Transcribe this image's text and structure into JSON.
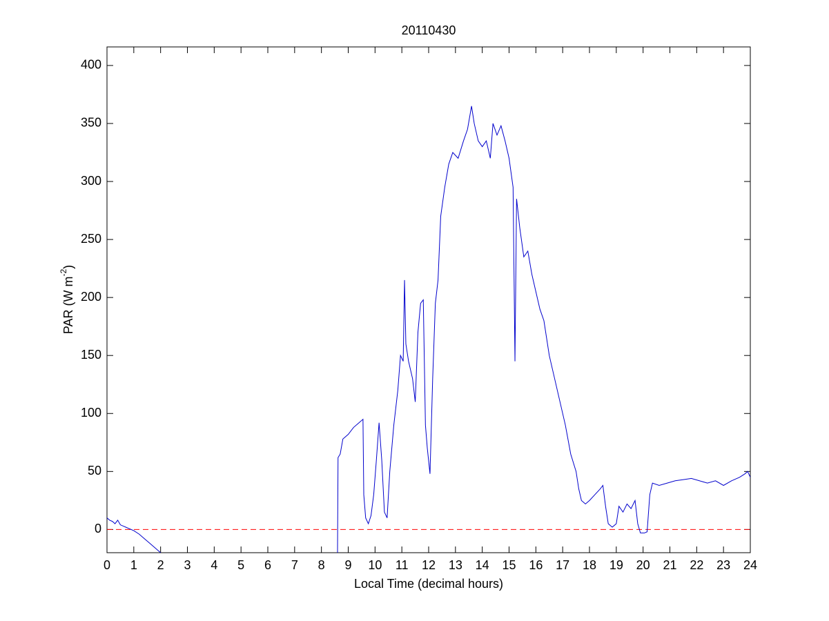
{
  "chart_data": {
    "type": "line",
    "title": "20110430",
    "xlabel": "Local Time (decimal hours)",
    "ylabel": {
      "text": "PAR (W m",
      "sup": "-2",
      "tail": ")"
    },
    "xlim": [
      0,
      24
    ],
    "xticks": [
      0,
      1,
      2,
      3,
      4,
      5,
      6,
      7,
      8,
      9,
      10,
      11,
      12,
      13,
      14,
      15,
      16,
      17,
      18,
      19,
      20,
      21,
      22,
      23,
      24
    ],
    "ylim": [
      -20,
      416
    ],
    "yticks": [
      0,
      50,
      100,
      150,
      200,
      250,
      300,
      350,
      400
    ],
    "reference_line": {
      "value": 0,
      "color": "#ff0000",
      "style": "dashed"
    },
    "series": [
      {
        "color": "#0000cc",
        "x": [
          0,
          0.1,
          0.2,
          0.3,
          0.4,
          0.5,
          0.6,
          0.7,
          0.8,
          0.9,
          1.0,
          1.2,
          1.4,
          1.6,
          1.8,
          2.0,
          5,
          8.6,
          8.62,
          8.7,
          8.8,
          9.0,
          9.2,
          9.4,
          9.55,
          9.58,
          9.65,
          9.75,
          9.85,
          9.95,
          10.05,
          10.15,
          10.25,
          10.35,
          10.45,
          10.55,
          10.7,
          10.85,
          10.95,
          11.05,
          11.1,
          11.15,
          11.25,
          11.4,
          11.5,
          11.6,
          11.7,
          11.8,
          11.88,
          11.95,
          12.05,
          12.15,
          12.25,
          12.35,
          12.45,
          12.6,
          12.75,
          12.9,
          13.1,
          13.3,
          13.45,
          13.6,
          13.7,
          13.85,
          14.0,
          14.15,
          14.3,
          14.4,
          14.55,
          14.7,
          14.85,
          15.0,
          15.15,
          15.22,
          15.28,
          15.4,
          15.55,
          15.7,
          15.85,
          16.0,
          16.15,
          16.3,
          16.5,
          16.7,
          16.9,
          17.1,
          17.3,
          17.5,
          17.6,
          17.7,
          17.85,
          18.0,
          18.2,
          18.4,
          18.5,
          18.6,
          18.7,
          18.85,
          19.0,
          19.1,
          19.25,
          19.4,
          19.55,
          19.7,
          19.8,
          19.9,
          20.05,
          20.15,
          20.25,
          20.35,
          20.6,
          20.9,
          21.2,
          21.5,
          21.8,
          22.1,
          22.4,
          22.7,
          23.0,
          23.3,
          23.6,
          23.8,
          23.9,
          24.0
        ],
        "values": [
          10,
          8,
          7,
          5,
          8,
          4,
          3,
          2,
          1,
          0,
          -1,
          -4,
          -8,
          -12,
          -16,
          -20,
          null,
          -20,
          62,
          65,
          78,
          82,
          88,
          92,
          95,
          30,
          10,
          5,
          12,
          30,
          60,
          92,
          60,
          15,
          10,
          50,
          90,
          120,
          150,
          145,
          215,
          160,
          145,
          130,
          110,
          170,
          195,
          198,
          90,
          70,
          48,
          130,
          195,
          215,
          270,
          295,
          315,
          325,
          320,
          335,
          345,
          365,
          350,
          335,
          330,
          335,
          320,
          350,
          340,
          348,
          335,
          320,
          295,
          145,
          285,
          260,
          235,
          240,
          220,
          205,
          190,
          180,
          150,
          130,
          110,
          90,
          65,
          50,
          35,
          25,
          22,
          25,
          30,
          35,
          38,
          20,
          5,
          2,
          5,
          20,
          15,
          22,
          18,
          25,
          5,
          -3,
          -3,
          -2,
          30,
          40,
          38,
          40,
          42,
          43,
          44,
          42,
          40,
          42,
          38,
          42,
          45,
          48,
          50,
          45
        ]
      }
    ]
  }
}
